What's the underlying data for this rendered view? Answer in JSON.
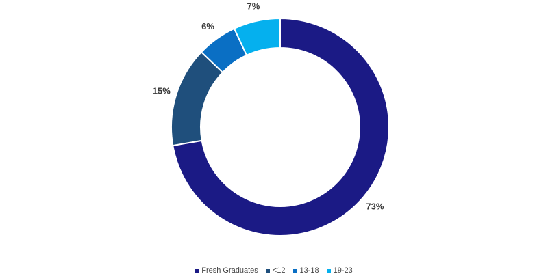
{
  "chart_data": {
    "type": "pie",
    "style": "donut",
    "title": "",
    "categories": [
      "Fresh Graduates",
      "<12",
      "13-18",
      "19-23"
    ],
    "values": [
      73,
      15,
      6,
      7
    ],
    "labels": [
      "73%",
      "15%",
      "6%",
      "7%"
    ],
    "colors": [
      "#1b1a85",
      "#1f4f7c",
      "#0a6fc4",
      "#05b0ee"
    ],
    "legend_position": "bottom"
  }
}
